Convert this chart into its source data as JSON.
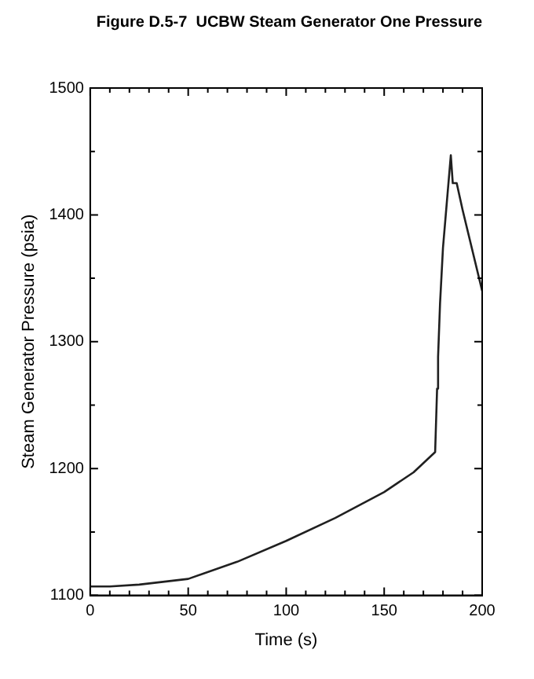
{
  "chart_data": {
    "type": "line",
    "title": "Figure D.5-7  UCBW Steam Generator One Pressure",
    "xlabel": "Time (s)",
    "ylabel": "Steam Generator Pressure (psia)",
    "xlim": [
      0,
      200
    ],
    "ylim": [
      1100,
      1500
    ],
    "xticks": [
      0,
      {
        "value": 10,
        "label": null
      },
      {
        "value": 20,
        "label": null
      },
      {
        "value": 30,
        "label": null
      },
      {
        "value": 40,
        "label": null
      },
      50,
      {
        "value": 60,
        "label": null
      },
      {
        "value": 70,
        "label": null
      },
      {
        "value": 80,
        "label": null
      },
      {
        "value": 90,
        "label": null
      },
      100,
      {
        "value": 110,
        "label": null
      },
      {
        "value": 120,
        "label": null
      },
      {
        "value": 130,
        "label": null
      },
      {
        "value": 140,
        "label": null
      },
      150,
      {
        "value": 160,
        "label": null
      },
      {
        "value": 170,
        "label": null
      },
      {
        "value": 180,
        "label": null
      },
      {
        "value": 190,
        "label": null
      },
      200
    ],
    "yticks": [
      1100,
      {
        "value": 1150,
        "label": null
      },
      1200,
      {
        "value": 1250,
        "label": null
      },
      1300,
      {
        "value": 1350,
        "label": null
      },
      1400,
      {
        "value": 1450,
        "label": null
      },
      1500
    ],
    "grid": false,
    "legend": false,
    "marker": "none",
    "line_style": "solid",
    "series": [
      {
        "color": "#202020",
        "x": [
          0,
          10,
          25,
          50,
          75,
          100,
          125,
          150,
          165,
          176,
          177,
          177.5,
          178.5,
          180,
          184,
          185,
          187,
          190,
          200
        ],
        "values": [
          1107,
          1107,
          1108.5,
          1113,
          1126.5,
          1143,
          1161,
          1181.5,
          1197,
          1213,
          1263,
          1288,
          1330,
          1374,
          1447,
          1425,
          1425,
          1404,
          1340
        ]
      }
    ]
  }
}
